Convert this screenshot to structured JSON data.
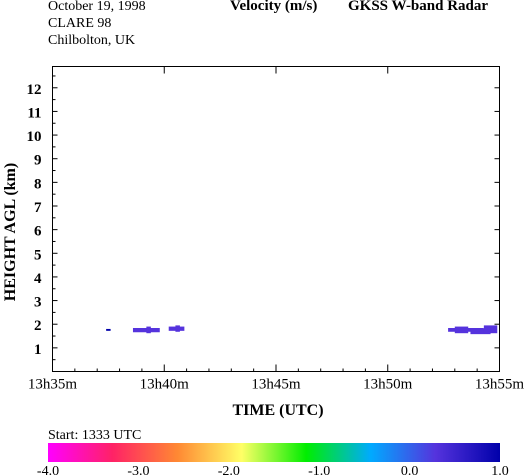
{
  "header": {
    "date": "October  19, 1998",
    "campaign": "CLARE 98",
    "location": "Chilbolton, UK",
    "quantity": "Velocity (m/s)",
    "instrument": "GKSS  W-band Radar"
  },
  "start_label": "Start: 1333 UTC",
  "chart_data": {
    "type": "heatmap",
    "title": "Velocity (m/s)",
    "xlabel": "TIME (UTC)",
    "ylabel": "HEIGHT AGL (km)",
    "xlim_minutes": [
      35,
      55
    ],
    "ylim": [
      0,
      12.9
    ],
    "x_ticks": [
      {
        "minute": 35,
        "label": "13h35m"
      },
      {
        "minute": 40,
        "label": "13h40m"
      },
      {
        "minute": 45,
        "label": "13h45m"
      },
      {
        "minute": 50,
        "label": "13h50m"
      },
      {
        "minute": 55,
        "label": "13h55m"
      }
    ],
    "y_ticks": [
      1,
      2,
      3,
      4,
      5,
      6,
      7,
      8,
      9,
      10,
      11,
      12
    ],
    "echoes": [
      {
        "t0": 37.4,
        "t1": 37.6,
        "h0": 1.72,
        "h1": 1.8,
        "value": 0.7
      },
      {
        "t0": 38.6,
        "t1": 39.8,
        "h0": 1.66,
        "h1": 1.84,
        "value": 0.6
      },
      {
        "t0": 39.2,
        "t1": 39.4,
        "h0": 1.62,
        "h1": 1.9,
        "value": 0.5
      },
      {
        "t0": 40.2,
        "t1": 40.9,
        "h0": 1.72,
        "h1": 1.9,
        "value": 0.6
      },
      {
        "t0": 40.5,
        "t1": 40.7,
        "h0": 1.68,
        "h1": 1.95,
        "value": 0.5
      },
      {
        "t0": 52.7,
        "t1": 54.3,
        "h0": 1.68,
        "h1": 1.84,
        "value": 0.6
      },
      {
        "t0": 53.0,
        "t1": 53.6,
        "h0": 1.62,
        "h1": 1.9,
        "value": 0.5
      },
      {
        "t0": 53.7,
        "t1": 54.6,
        "h0": 1.58,
        "h1": 1.8,
        "value": 0.55
      },
      {
        "t0": 54.3,
        "t1": 54.9,
        "h0": 1.62,
        "h1": 1.95,
        "value": 0.6
      }
    ],
    "colorbar": {
      "range": [
        -4.0,
        1.0
      ],
      "tick_labels": [
        "-4.0",
        "-3.0",
        "-2.0",
        "-1.0",
        "0.0",
        "1.0"
      ],
      "stops": [
        "#ff00ff",
        "#ff2266",
        "#ff8833",
        "#ffff66",
        "#00ee00",
        "#00aaff",
        "#5533dd",
        "#0000aa"
      ]
    }
  }
}
